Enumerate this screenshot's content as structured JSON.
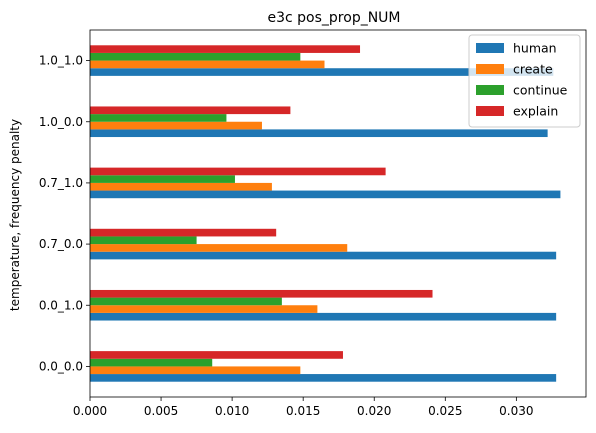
{
  "chart_data": {
    "type": "bar",
    "orientation": "horizontal",
    "title": "e3c pos_prop_NUM",
    "xlabel": "",
    "ylabel": "temperature, frequency penalty",
    "categories": [
      "0.0_0.0",
      "0.0_1.0",
      "0.7_0.0",
      "0.7_1.0",
      "1.0_0.0",
      "1.0_1.0"
    ],
    "series": [
      {
        "name": "human",
        "color": "#1f77b4",
        "values": [
          0.0328,
          0.0328,
          0.0328,
          0.0331,
          0.0322,
          0.0326
        ]
      },
      {
        "name": "create",
        "color": "#ff7f0e",
        "values": [
          0.0148,
          0.016,
          0.0181,
          0.0128,
          0.0121,
          0.0165
        ]
      },
      {
        "name": "continue",
        "color": "#2ca02c",
        "values": [
          0.0086,
          0.0135,
          0.0075,
          0.0102,
          0.0096,
          0.0148
        ]
      },
      {
        "name": "explain",
        "color": "#d62728",
        "values": [
          0.0178,
          0.0241,
          0.0131,
          0.0208,
          0.0141,
          0.019
        ]
      }
    ],
    "xlim": [
      0,
      0.0349
    ],
    "xticks": [
      "0.000",
      "0.005",
      "0.010",
      "0.015",
      "0.020",
      "0.025",
      "0.030"
    ],
    "grid": false,
    "legend_position": "top-right"
  }
}
